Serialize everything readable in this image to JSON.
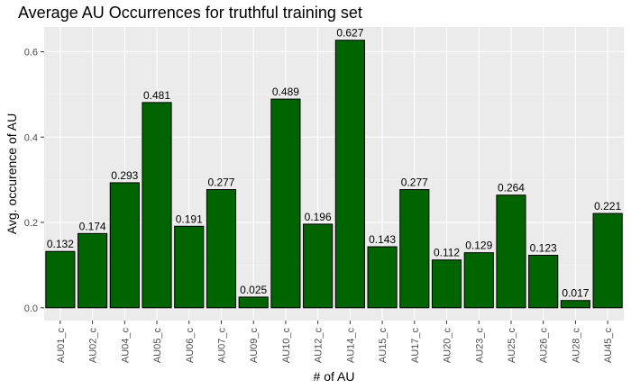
{
  "chart_data": {
    "type": "bar",
    "title": "Average AU Occurrences for truthful training set",
    "xlabel": "# of AU",
    "ylabel": "Avg. occurence of AU",
    "categories": [
      "AU01_c",
      "AU02_c",
      "AU04_c",
      "AU05_c",
      "AU06_c",
      "AU07_c",
      "AU09_c",
      "AU10_c",
      "AU12_c",
      "AU14_c",
      "AU15_c",
      "AU17_c",
      "AU20_c",
      "AU23_c",
      "AU25_c",
      "AU26_c",
      "AU28_c",
      "AU45_c"
    ],
    "values": [
      0.132,
      0.174,
      0.293,
      0.481,
      0.191,
      0.277,
      0.025,
      0.489,
      0.196,
      0.627,
      0.143,
      0.277,
      0.112,
      0.129,
      0.264,
      0.123,
      0.017,
      0.221
    ],
    "data_labels": [
      "0.132",
      "0.174",
      "0.293",
      "0.481",
      "0.191",
      "0.277",
      "0.025",
      "0.489",
      "0.196",
      "0.627",
      "0.143",
      "0.277",
      "0.112",
      "0.129",
      "0.264",
      "0.123",
      "0.017",
      "0.221"
    ],
    "y_ticks": [
      0,
      0.2,
      0.4,
      0.6
    ],
    "y_tick_labels": [
      "0.0",
      "0.2",
      "0.4",
      "0.6"
    ],
    "ylim": [
      -0.03,
      0.658
    ],
    "grid": true,
    "colors": {
      "bar_fill": "#006400",
      "bar_stroke": "#000000",
      "panel_bg": "#ebebeb",
      "grid_major": "#ffffff",
      "grid_minor": "#f5f5f5"
    }
  }
}
